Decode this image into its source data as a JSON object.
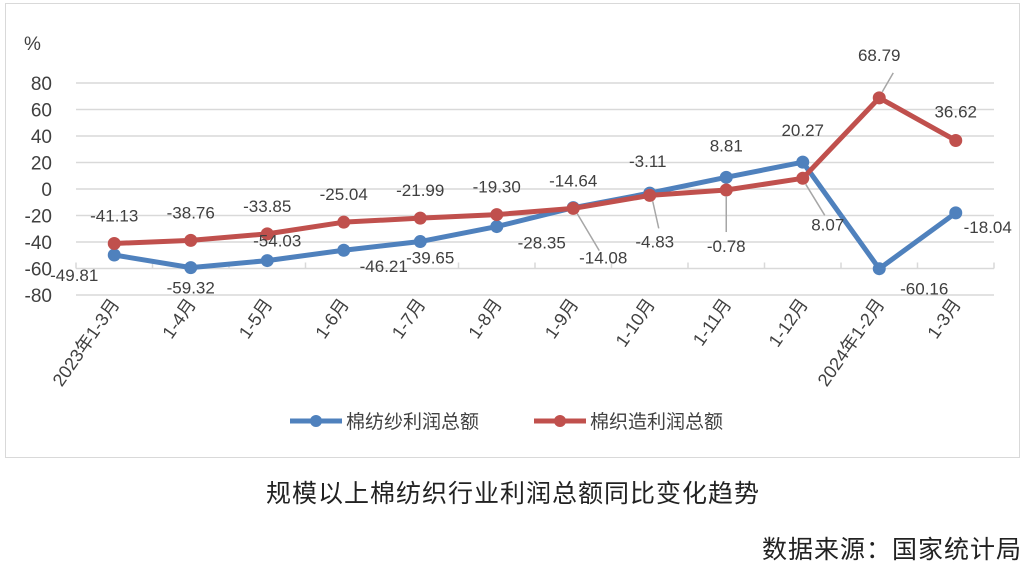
{
  "chart_data": {
    "type": "line",
    "title": "规模以上棉纺织行业利润总额同比变化趋势",
    "source": "数据来源：国家统计局",
    "ylabel": "%",
    "xlabel": "",
    "ylim": [
      -80,
      80
    ],
    "yticks": [
      80,
      60,
      40,
      20,
      0,
      -20,
      -40,
      -60,
      -80
    ],
    "grid": true,
    "legend_position": "bottom",
    "categories": [
      "2023年1-3月",
      "1-4月",
      "1-5月",
      "1-6月",
      "1-7月",
      "1-8月",
      "1-9月",
      "1-10月",
      "1-11月",
      "1-12月",
      "2024年1-2月",
      "1-3月"
    ],
    "series": [
      {
        "name": "棉纺纱利润总额",
        "color": "#4f81bd",
        "values": [
          -49.81,
          -59.32,
          -54.03,
          -46.21,
          -39.65,
          -28.35,
          -14.08,
          -3.11,
          8.81,
          20.27,
          -60.16,
          -18.04
        ],
        "labels": [
          "-49.81",
          "-59.32",
          "-54.03",
          "-46.21",
          "-39.65",
          "-28.35",
          "-14.08",
          "-3.11",
          "8.81",
          "20.27",
          "-60.16",
          "-18.04"
        ]
      },
      {
        "name": "棉织造利润总额",
        "color": "#c0504d",
        "values": [
          -41.13,
          -38.76,
          -33.85,
          -25.04,
          -21.99,
          -19.3,
          -14.64,
          -4.83,
          -0.78,
          8.07,
          68.79,
          36.62
        ],
        "labels": [
          "-41.13",
          "-38.76",
          "-33.85",
          "-25.04",
          "-21.99",
          "-19.30",
          "-14.64",
          "-4.83",
          "-0.78",
          "8.07",
          "68.79",
          "36.62"
        ]
      }
    ]
  },
  "caption": "规模以上棉纺织行业利润总额同比变化趋势",
  "source": "数据来源：国家统计局",
  "axis_unit": "%"
}
